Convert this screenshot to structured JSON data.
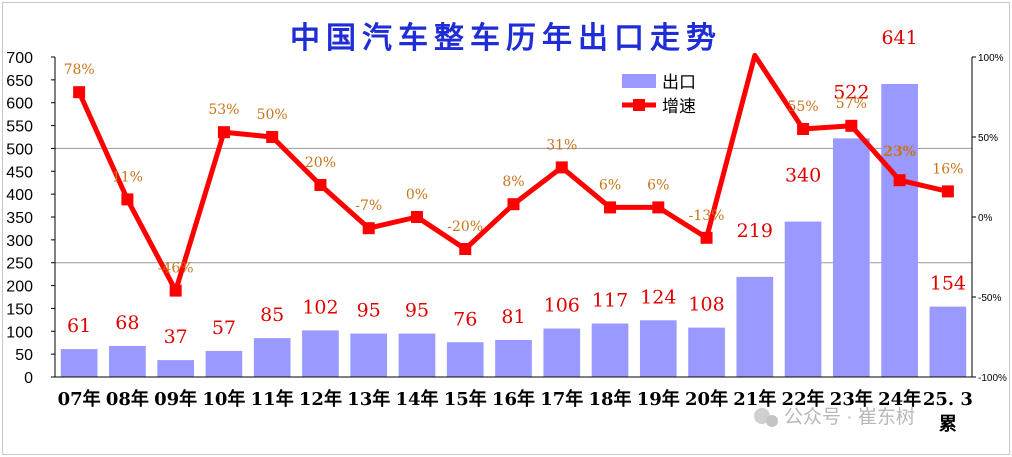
{
  "chart_data": {
    "type": "bar+line",
    "title": "中国汽车整车历年出口走势",
    "categories": [
      "07年",
      "08年",
      "09年",
      "10年",
      "11年",
      "12年",
      "13年",
      "14年",
      "15年",
      "16年",
      "17年",
      "18年",
      "19年",
      "20年",
      "21年",
      "22年",
      "23年",
      "24年",
      "25. 3"
    ],
    "last_category_sub": "累",
    "series": [
      {
        "name": "出口",
        "type": "bar",
        "axis": "left",
        "color": "#9999ff",
        "values": [
          61,
          68,
          37,
          57,
          85,
          102,
          95,
          95,
          76,
          81,
          106,
          117,
          124,
          108,
          219,
          340,
          522,
          641,
          154
        ]
      },
      {
        "name": "增速",
        "type": "line",
        "axis": "right",
        "color": "#ff0000",
        "values": [
          78,
          11,
          -46,
          53,
          50,
          20,
          -7,
          0,
          -20,
          8,
          31,
          6,
          6,
          -13,
          101,
          55,
          57,
          23,
          16
        ],
        "labels": [
          "78%",
          "11%",
          "-46%",
          "53%",
          "50%",
          "20%",
          "-7%",
          "0%",
          "-20%",
          "8%",
          "31%",
          "6%",
          "6%",
          "-13%",
          "",
          "55%",
          "57%",
          "23%",
          "16%"
        ]
      }
    ],
    "y_left": {
      "min": 0,
      "max": 700,
      "step": 50,
      "ticks": [
        "0",
        "50",
        "100",
        "150",
        "200",
        "250",
        "300",
        "350",
        "400",
        "450",
        "500",
        "550",
        "600",
        "650",
        "700"
      ]
    },
    "y_right": {
      "min": -100,
      "max": 100,
      "ticks": [
        {
          "v": 100,
          "label": "100%"
        },
        {
          "v": 50,
          "label": "50%"
        },
        {
          "v": 0,
          "label": "0%"
        },
        {
          "v": -50,
          "label": "-50%"
        },
        {
          "v": -100,
          "label": "-100%"
        }
      ]
    },
    "gridlines_left": [
      250,
      500
    ]
  },
  "watermark": "公众号 · 崔东树"
}
